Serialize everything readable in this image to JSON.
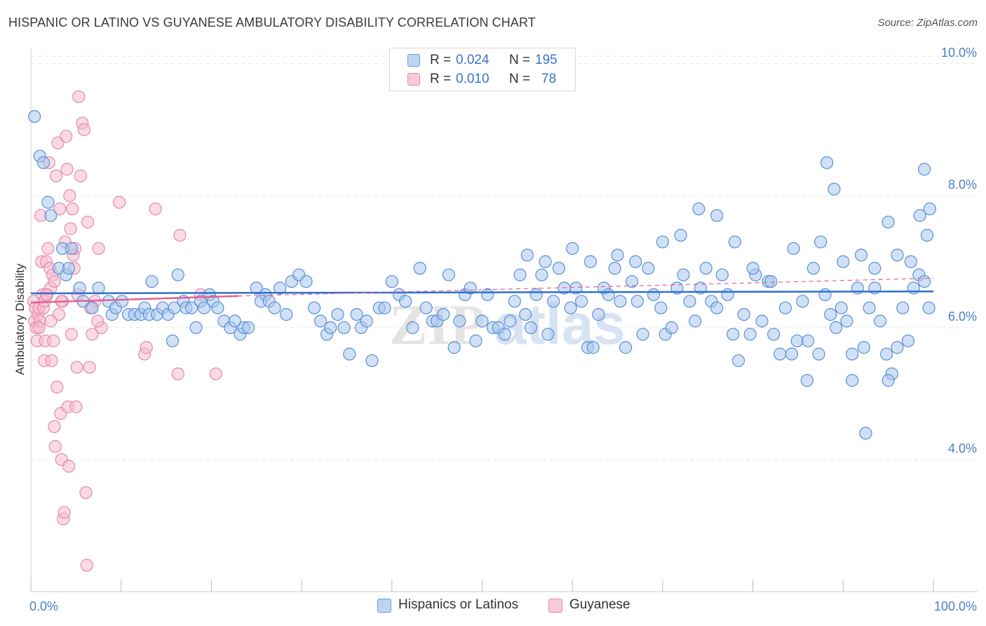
{
  "header": {
    "title": "HISPANIC OR LATINO VS GUYANESE AMBULATORY DISABILITY CORRELATION CHART",
    "source": "Source: ZipAtlas.com"
  },
  "legend": {
    "rows": [
      {
        "r_label": "R =",
        "r_value": "0.024",
        "n_label": "N =",
        "n_value": "195"
      },
      {
        "r_label": "R =",
        "r_value": "0.010",
        "n_label": "N =",
        "n_value": "78"
      }
    ]
  },
  "watermark": {
    "zip": "ZIP",
    "atlas": "atlas"
  },
  "colors": {
    "blue_fill": "#a9c8ee",
    "blue_stroke": "#5b8fd6",
    "blue_line": "#2e6fd0",
    "pink_fill": "#f6bcd0",
    "pink_stroke": "#e58aa9",
    "pink_line": "#e0628f",
    "tick_text": "#4a7fc9",
    "grid": "#e6e6e6"
  },
  "chart_data": {
    "type": "scatter",
    "title": "HISPANIC OR LATINO VS GUYANESE AMBULATORY DISABILITY CORRELATION CHART",
    "xlabel": "",
    "ylabel": "Ambulatory Disability",
    "xlim": [
      0,
      100
    ],
    "ylim": [
      2.0,
      10.2
    ],
    "x_tick_labels": [
      "0.0%",
      "100.0%"
    ],
    "y_ticks": [
      4.0,
      6.0,
      8.0,
      10.0
    ],
    "y_tick_labels": [
      "4.0%",
      "6.0%",
      "8.0%",
      "10.0%"
    ],
    "grid": true,
    "legend_position": "bottom-center",
    "series": [
      {
        "name": "Hispanics or Latinos",
        "color": "#a9c8ee",
        "trend": {
          "x": [
            0,
            100
          ],
          "y": [
            6.52,
            6.55
          ],
          "style": "solid"
        },
        "points": [
          [
            0.4,
            9.2
          ],
          [
            1.0,
            8.6
          ],
          [
            1.4,
            8.5
          ],
          [
            1.9,
            7.9
          ],
          [
            2.2,
            7.7
          ],
          [
            3.1,
            6.9
          ],
          [
            3.5,
            7.2
          ],
          [
            3.9,
            6.8
          ],
          [
            4.2,
            6.9
          ],
          [
            4.5,
            7.2
          ],
          [
            5.4,
            6.6
          ],
          [
            5.8,
            6.4
          ],
          [
            6.8,
            6.3
          ],
          [
            7.5,
            6.6
          ],
          [
            8.6,
            6.4
          ],
          [
            9.0,
            6.2
          ],
          [
            9.4,
            6.3
          ],
          [
            10.1,
            6.4
          ],
          [
            10.8,
            6.2
          ],
          [
            11.5,
            6.2
          ],
          [
            12.2,
            6.2
          ],
          [
            12.6,
            6.3
          ],
          [
            13.1,
            6.2
          ],
          [
            13.4,
            6.7
          ],
          [
            14.0,
            6.2
          ],
          [
            14.6,
            6.3
          ],
          [
            15.2,
            6.2
          ],
          [
            15.7,
            5.8
          ],
          [
            15.9,
            6.3
          ],
          [
            16.3,
            6.8
          ],
          [
            16.9,
            6.4
          ],
          [
            17.2,
            6.3
          ],
          [
            17.8,
            6.3
          ],
          [
            18.3,
            6.0
          ],
          [
            18.8,
            6.4
          ],
          [
            19.2,
            6.3
          ],
          [
            19.8,
            6.5
          ],
          [
            20.2,
            6.4
          ],
          [
            20.7,
            6.3
          ],
          [
            21.4,
            6.1
          ],
          [
            22.1,
            6.0
          ],
          [
            22.6,
            6.1
          ],
          [
            23.2,
            5.9
          ],
          [
            23.6,
            6.0
          ],
          [
            24.1,
            6.0
          ],
          [
            25.0,
            6.6
          ],
          [
            25.5,
            6.4
          ],
          [
            26.0,
            6.5
          ],
          [
            26.4,
            6.4
          ],
          [
            27.0,
            6.3
          ],
          [
            27.6,
            6.6
          ],
          [
            28.3,
            6.2
          ],
          [
            28.9,
            6.7
          ],
          [
            29.7,
            6.8
          ],
          [
            30.5,
            6.7
          ],
          [
            31.4,
            6.3
          ],
          [
            32.1,
            6.1
          ],
          [
            32.8,
            5.9
          ],
          [
            33.2,
            6.0
          ],
          [
            34.0,
            6.2
          ],
          [
            34.7,
            6.0
          ],
          [
            35.3,
            5.6
          ],
          [
            36.1,
            6.2
          ],
          [
            36.6,
            6.0
          ],
          [
            37.2,
            6.1
          ],
          [
            37.8,
            5.5
          ],
          [
            38.6,
            6.3
          ],
          [
            39.2,
            6.3
          ],
          [
            40.0,
            6.7
          ],
          [
            40.8,
            6.5
          ],
          [
            41.5,
            6.4
          ],
          [
            42.3,
            6.0
          ],
          [
            43.1,
            6.9
          ],
          [
            43.8,
            6.3
          ],
          [
            44.5,
            6.1
          ],
          [
            45.0,
            6.1
          ],
          [
            45.7,
            6.2
          ],
          [
            46.3,
            6.8
          ],
          [
            46.9,
            5.7
          ],
          [
            47.5,
            6.1
          ],
          [
            48.1,
            6.5
          ],
          [
            48.7,
            6.6
          ],
          [
            49.3,
            5.8
          ],
          [
            50.0,
            6.1
          ],
          [
            50.6,
            6.5
          ],
          [
            51.2,
            6.0
          ],
          [
            51.8,
            6.0
          ],
          [
            52.5,
            5.9
          ],
          [
            53.1,
            6.1
          ],
          [
            53.6,
            6.4
          ],
          [
            54.2,
            6.8
          ],
          [
            54.8,
            6.2
          ],
          [
            55.4,
            6.0
          ],
          [
            56.0,
            6.5
          ],
          [
            56.6,
            6.8
          ],
          [
            57.3,
            5.9
          ],
          [
            57.9,
            6.4
          ],
          [
            58.5,
            6.9
          ],
          [
            59.1,
            6.6
          ],
          [
            59.8,
            6.3
          ],
          [
            60.4,
            6.6
          ],
          [
            61.0,
            6.4
          ],
          [
            61.7,
            5.7
          ],
          [
            62.3,
            5.7
          ],
          [
            62.9,
            6.2
          ],
          [
            63.5,
            6.6
          ],
          [
            64.0,
            6.5
          ],
          [
            64.7,
            6.9
          ],
          [
            65.3,
            6.4
          ],
          [
            65.9,
            5.7
          ],
          [
            66.6,
            6.7
          ],
          [
            67.2,
            6.4
          ],
          [
            67.8,
            5.9
          ],
          [
            68.4,
            6.9
          ],
          [
            69.0,
            6.5
          ],
          [
            69.8,
            6.3
          ],
          [
            70.3,
            5.9
          ],
          [
            71.0,
            6.0
          ],
          [
            71.6,
            6.6
          ],
          [
            72.3,
            6.8
          ],
          [
            73.0,
            6.4
          ],
          [
            73.6,
            6.1
          ],
          [
            74.2,
            6.6
          ],
          [
            74.8,
            6.9
          ],
          [
            75.4,
            6.4
          ],
          [
            76.0,
            6.3
          ],
          [
            76.6,
            6.8
          ],
          [
            77.2,
            6.5
          ],
          [
            77.8,
            5.9
          ],
          [
            78.4,
            5.5
          ],
          [
            79.0,
            6.2
          ],
          [
            79.7,
            5.9
          ],
          [
            80.3,
            6.8
          ],
          [
            81.0,
            6.1
          ],
          [
            81.7,
            6.7
          ],
          [
            82.3,
            5.9
          ],
          [
            83.0,
            5.6
          ],
          [
            83.6,
            6.3
          ],
          [
            84.3,
            5.6
          ],
          [
            84.9,
            5.8
          ],
          [
            85.5,
            6.4
          ],
          [
            86.1,
            5.8
          ],
          [
            86.7,
            6.9
          ],
          [
            87.3,
            5.6
          ],
          [
            88.0,
            6.5
          ],
          [
            88.6,
            6.2
          ],
          [
            89.2,
            6.0
          ],
          [
            89.8,
            6.3
          ],
          [
            90.4,
            6.1
          ],
          [
            91.0,
            5.6
          ],
          [
            91.6,
            6.6
          ],
          [
            92.3,
            5.7
          ],
          [
            92.9,
            6.3
          ],
          [
            93.5,
            6.6
          ],
          [
            94.1,
            6.1
          ],
          [
            94.8,
            5.6
          ],
          [
            95.4,
            5.3
          ],
          [
            96.0,
            5.7
          ],
          [
            96.6,
            6.3
          ],
          [
            97.2,
            5.8
          ],
          [
            97.8,
            6.6
          ],
          [
            98.4,
            6.8
          ],
          [
            99.0,
            6.7
          ],
          [
            99.5,
            6.3
          ],
          [
            84.5,
            7.2
          ],
          [
            87.5,
            7.3
          ],
          [
            90.0,
            7.0
          ],
          [
            92.0,
            7.1
          ],
          [
            93.5,
            6.9
          ],
          [
            95.0,
            7.6
          ],
          [
            96.0,
            7.1
          ],
          [
            97.5,
            7.0
          ],
          [
            98.5,
            7.7
          ],
          [
            99.3,
            7.4
          ],
          [
            99.6,
            7.8
          ],
          [
            80.0,
            6.9
          ],
          [
            82.0,
            6.7
          ],
          [
            70.0,
            7.3
          ],
          [
            72.0,
            7.4
          ],
          [
            74.0,
            7.8
          ],
          [
            76.0,
            7.7
          ],
          [
            78.0,
            7.3
          ],
          [
            65.0,
            7.1
          ],
          [
            67.0,
            7.0
          ],
          [
            60.0,
            7.2
          ],
          [
            62.0,
            7.0
          ],
          [
            55.0,
            7.1
          ],
          [
            57.0,
            7.0
          ],
          [
            88.2,
            8.5
          ],
          [
            89.0,
            8.1
          ],
          [
            99.0,
            8.4
          ],
          [
            95.0,
            5.2
          ],
          [
            92.5,
            4.4
          ],
          [
            91.0,
            5.2
          ],
          [
            86.0,
            5.2
          ]
        ]
      },
      {
        "name": "Guyanese",
        "color": "#f6bcd0",
        "trend": {
          "x": [
            0,
            23
          ],
          "y": [
            6.38,
            6.48
          ],
          "style": "solid",
          "extended": {
            "x": [
              23,
              100
            ],
            "y": [
              6.48,
              6.75
            ],
            "style": "dashed"
          }
        },
        "points": [
          [
            0.3,
            6.4
          ],
          [
            0.4,
            6.1
          ],
          [
            0.5,
            6.3
          ],
          [
            0.6,
            6.0
          ],
          [
            0.7,
            5.8
          ],
          [
            0.8,
            6.2
          ],
          [
            0.9,
            6.3
          ],
          [
            1.0,
            6.1
          ],
          [
            1.1,
            7.7
          ],
          [
            1.2,
            7.0
          ],
          [
            1.3,
            6.5
          ],
          [
            1.4,
            6.3
          ],
          [
            1.5,
            5.5
          ],
          [
            1.6,
            5.8
          ],
          [
            1.7,
            7.0
          ],
          [
            1.8,
            6.5
          ],
          [
            1.9,
            7.2
          ],
          [
            2.0,
            8.5
          ],
          [
            2.1,
            6.9
          ],
          [
            2.2,
            6.6
          ],
          [
            2.3,
            5.5
          ],
          [
            2.4,
            6.8
          ],
          [
            2.5,
            5.8
          ],
          [
            2.6,
            4.5
          ],
          [
            2.7,
            4.2
          ],
          [
            2.8,
            8.3
          ],
          [
            2.9,
            5.1
          ],
          [
            3.0,
            8.8
          ],
          [
            3.1,
            6.2
          ],
          [
            3.2,
            7.8
          ],
          [
            3.3,
            4.7
          ],
          [
            3.4,
            4.0
          ],
          [
            3.5,
            6.4
          ],
          [
            3.6,
            3.1
          ],
          [
            3.7,
            3.2
          ],
          [
            3.8,
            7.3
          ],
          [
            3.9,
            8.9
          ],
          [
            4.0,
            8.4
          ],
          [
            4.1,
            4.8
          ],
          [
            4.2,
            3.9
          ],
          [
            4.3,
            8.0
          ],
          [
            4.4,
            7.5
          ],
          [
            4.5,
            5.9
          ],
          [
            4.6,
            7.8
          ],
          [
            4.7,
            7.1
          ],
          [
            4.8,
            6.9
          ],
          [
            5.0,
            4.8
          ],
          [
            5.1,
            5.4
          ],
          [
            5.3,
            9.5
          ],
          [
            5.5,
            8.3
          ],
          [
            5.7,
            9.1
          ],
          [
            5.9,
            9.0
          ],
          [
            6.1,
            3.5
          ],
          [
            6.3,
            7.6
          ],
          [
            6.5,
            5.4
          ],
          [
            6.8,
            5.9
          ],
          [
            7.1,
            6.4
          ],
          [
            7.5,
            7.2
          ],
          [
            7.8,
            6.0
          ],
          [
            9.8,
            7.9
          ],
          [
            12.6,
            5.6
          ],
          [
            12.8,
            5.7
          ],
          [
            13.8,
            7.8
          ],
          [
            16.5,
            7.4
          ],
          [
            16.3,
            5.3
          ],
          [
            18.8,
            6.5
          ],
          [
            20.5,
            5.3
          ],
          [
            6.2,
            2.4
          ],
          [
            1.5,
            6.4
          ],
          [
            2.2,
            6.1
          ],
          [
            0.9,
            6.0
          ],
          [
            1.7,
            6.5
          ],
          [
            2.6,
            6.7
          ],
          [
            3.4,
            6.4
          ],
          [
            4.9,
            7.2
          ],
          [
            6.6,
            6.3
          ],
          [
            7.4,
            6.1
          ],
          [
            5.2,
            6.5
          ]
        ]
      }
    ]
  }
}
